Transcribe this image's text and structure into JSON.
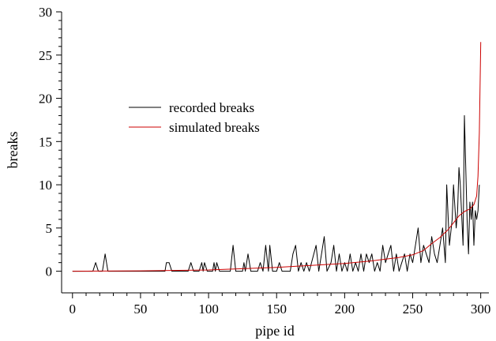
{
  "chart_data": {
    "type": "line",
    "title": "",
    "xlabel": "pipe id",
    "ylabel": "breaks",
    "xlim": [
      -8,
      306
    ],
    "ylim": [
      -2.5,
      30
    ],
    "x_ticks": [
      0,
      50,
      100,
      150,
      200,
      250,
      300
    ],
    "y_ticks": [
      0,
      5,
      10,
      15,
      20,
      25,
      30
    ],
    "grid": false,
    "legend_position": "upper-left",
    "series": [
      {
        "name": "recorded breaks",
        "color": "#000000",
        "points": [
          [
            0,
            0
          ],
          [
            15,
            0
          ],
          [
            17,
            1
          ],
          [
            19,
            0
          ],
          [
            22,
            0
          ],
          [
            24,
            2
          ],
          [
            26,
            0
          ],
          [
            68,
            0
          ],
          [
            69,
            1
          ],
          [
            71,
            1
          ],
          [
            73,
            0
          ],
          [
            85,
            0
          ],
          [
            87,
            1
          ],
          [
            89,
            0
          ],
          [
            93,
            0
          ],
          [
            95,
            1
          ],
          [
            96,
            0
          ],
          [
            97,
            1
          ],
          [
            99,
            0
          ],
          [
            103,
            0
          ],
          [
            104,
            1
          ],
          [
            105,
            0
          ],
          [
            106,
            1
          ],
          [
            108,
            0
          ],
          [
            116,
            0
          ],
          [
            118,
            3
          ],
          [
            120,
            0
          ],
          [
            125,
            0
          ],
          [
            126,
            1
          ],
          [
            127,
            0
          ],
          [
            129,
            2
          ],
          [
            131,
            0
          ],
          [
            136,
            0
          ],
          [
            138,
            1
          ],
          [
            140,
            0
          ],
          [
            142,
            3
          ],
          [
            144,
            0
          ],
          [
            145,
            3
          ],
          [
            147,
            0
          ],
          [
            150,
            0
          ],
          [
            152,
            1
          ],
          [
            154,
            0
          ],
          [
            160,
            0
          ],
          [
            162,
            2
          ],
          [
            164,
            3
          ],
          [
            166,
            0
          ],
          [
            168,
            1
          ],
          [
            170,
            0
          ],
          [
            172,
            1
          ],
          [
            174,
            0
          ],
          [
            179,
            3
          ],
          [
            181,
            0
          ],
          [
            183,
            2
          ],
          [
            185,
            4
          ],
          [
            187,
            0
          ],
          [
            190,
            1
          ],
          [
            192,
            3
          ],
          [
            194,
            0
          ],
          [
            196,
            2
          ],
          [
            198,
            0
          ],
          [
            200,
            1
          ],
          [
            202,
            0
          ],
          [
            204,
            2
          ],
          [
            206,
            0
          ],
          [
            208,
            1
          ],
          [
            210,
            0
          ],
          [
            212,
            2
          ],
          [
            214,
            0
          ],
          [
            216,
            2
          ],
          [
            218,
            1
          ],
          [
            220,
            2
          ],
          [
            222,
            0
          ],
          [
            224,
            1
          ],
          [
            226,
            0
          ],
          [
            228,
            3
          ],
          [
            230,
            1
          ],
          [
            232,
            2
          ],
          [
            234,
            3
          ],
          [
            236,
            0
          ],
          [
            238,
            2
          ],
          [
            240,
            0
          ],
          [
            242,
            1
          ],
          [
            244,
            2
          ],
          [
            246,
            0
          ],
          [
            248,
            2
          ],
          [
            250,
            1
          ],
          [
            252,
            3
          ],
          [
            254,
            5
          ],
          [
            256,
            1
          ],
          [
            258,
            3
          ],
          [
            260,
            2
          ],
          [
            262,
            1
          ],
          [
            264,
            4
          ],
          [
            266,
            2
          ],
          [
            268,
            1
          ],
          [
            270,
            3
          ],
          [
            272,
            5
          ],
          [
            274,
            1
          ],
          [
            275,
            10
          ],
          [
            277,
            3
          ],
          [
            279,
            6
          ],
          [
            280,
            10
          ],
          [
            282,
            5
          ],
          [
            283,
            7
          ],
          [
            284,
            12
          ],
          [
            285,
            10
          ],
          [
            287,
            3
          ],
          [
            288,
            18
          ],
          [
            290,
            6
          ],
          [
            291,
            2
          ],
          [
            292,
            8
          ],
          [
            293,
            6
          ],
          [
            294,
            8
          ],
          [
            295,
            3
          ],
          [
            296,
            7
          ],
          [
            297,
            6
          ],
          [
            298,
            7
          ],
          [
            299,
            10
          ]
        ]
      },
      {
        "name": "simulated breaks",
        "color": "#cc0000",
        "points": [
          [
            0,
            0
          ],
          [
            50,
            0.05
          ],
          [
            100,
            0.15
          ],
          [
            150,
            0.45
          ],
          [
            200,
            0.9
          ],
          [
            220,
            1.2
          ],
          [
            240,
            1.6
          ],
          [
            250,
            1.9
          ],
          [
            258,
            2.4
          ],
          [
            264,
            3.2
          ],
          [
            270,
            3.9
          ],
          [
            276,
            4.8
          ],
          [
            280,
            5.6
          ],
          [
            284,
            6.4
          ],
          [
            288,
            6.9
          ],
          [
            292,
            7.2
          ],
          [
            295,
            7.7
          ],
          [
            297,
            8.7
          ],
          [
            298,
            11
          ],
          [
            299,
            16
          ],
          [
            300,
            26.5
          ]
        ]
      }
    ]
  }
}
